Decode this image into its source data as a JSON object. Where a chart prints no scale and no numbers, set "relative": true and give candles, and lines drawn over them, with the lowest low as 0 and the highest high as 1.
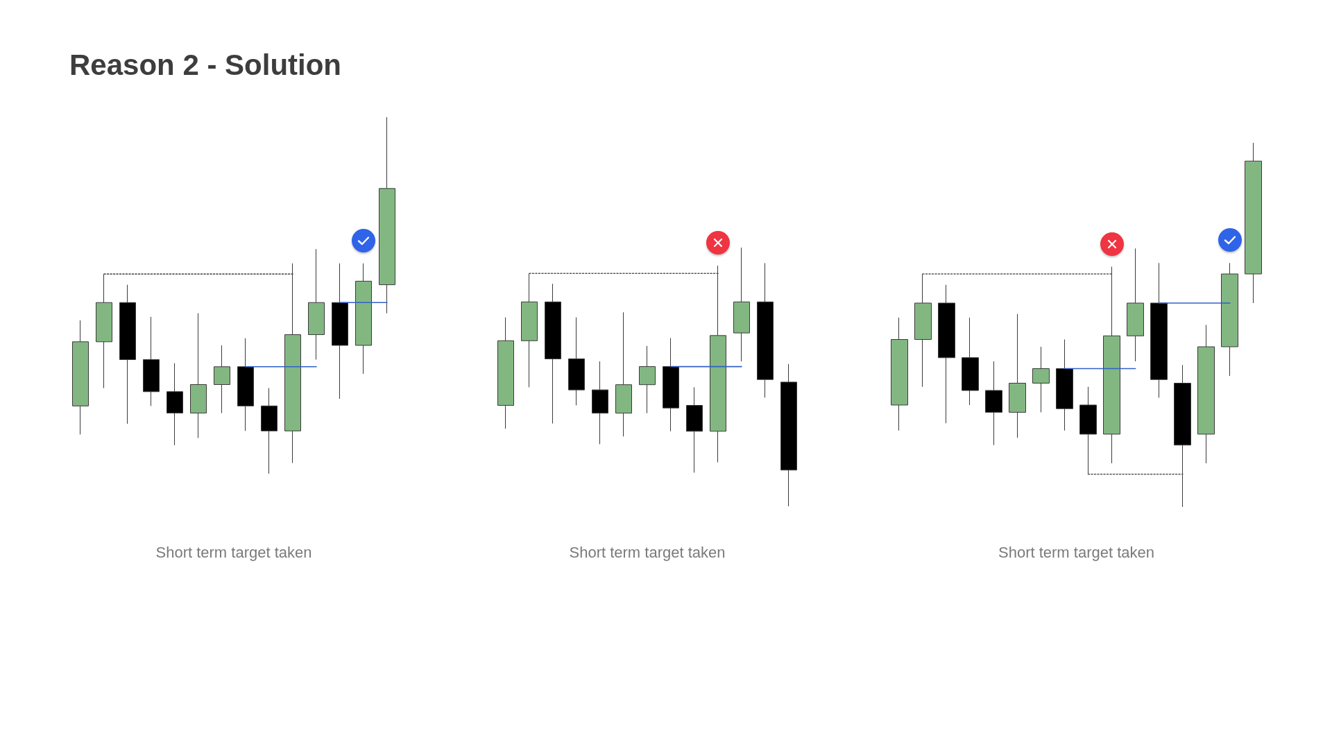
{
  "chart_data": [
    {
      "type": "other",
      "title": "Reason 2 - Solution"
    },
    {
      "type": "candlestick",
      "annotations": [
        "Short term target taken"
      ],
      "relative": true,
      "marker": "none",
      "categories": [
        null,
        null,
        null,
        null,
        null,
        null,
        null,
        null,
        null,
        null,
        null,
        null,
        null,
        null
      ],
      "ohlc": [
        [
          0.19,
          0.43,
          0.11,
          0.37
        ],
        [
          0.37,
          0.56,
          0.24,
          0.48
        ],
        [
          0.48,
          0.53,
          0.14,
          0.32
        ],
        [
          0.32,
          0.44,
          0.19,
          0.23
        ],
        [
          0.23,
          0.31,
          0.08,
          0.17
        ],
        [
          0.17,
          0.45,
          0.1,
          0.25
        ],
        [
          0.25,
          0.36,
          0.17,
          0.3
        ],
        [
          0.3,
          0.38,
          0.12,
          0.19
        ],
        [
          0.19,
          0.24,
          0,
          0.12
        ],
        [
          0.12,
          0.59,
          0.03,
          0.39
        ],
        [
          0.39,
          0.63,
          0.32,
          0.48
        ],
        [
          0.48,
          0.59,
          0.21,
          0.36
        ],
        [
          0.36,
          0.59,
          0.28,
          0.54
        ],
        [
          0.53,
          1,
          0.45,
          0.8
        ]
      ],
      "colors": [
        "#83b782",
        "#83b782",
        "#000000",
        "#000000",
        "#000000",
        "#83b782",
        "#83b782",
        "#000000",
        "#000000",
        "#83b782",
        "#83b782",
        "#000000",
        "#83b782",
        "#83b782"
      ],
      "series": [
        {
          "type": "line",
          "color": "#555555",
          "line_style": "dotted",
          "values": [
            null,
            0.56,
            0.56,
            0.56,
            0.56,
            0.56,
            0.56,
            0.56,
            0.56,
            0.56,
            null,
            null,
            null,
            null
          ]
        },
        {
          "type": "line",
          "color": "#3060c8",
          "line_style": "solid",
          "values": [
            null,
            null,
            null,
            null,
            null,
            null,
            null,
            0.3,
            0.3,
            0.3,
            0.3,
            null,
            null,
            null
          ]
        },
        {
          "type": "line",
          "color": "#3060c8",
          "line_style": "solid",
          "values": [
            null,
            null,
            null,
            null,
            null,
            null,
            null,
            null,
            null,
            null,
            null,
            0.48,
            0.48,
            0.48
          ]
        }
      ]
    },
    {
      "type": "candlestick",
      "annotations": [
        "Short term target taken"
      ],
      "relative": true,
      "marker": "none",
      "categories": [
        null,
        null,
        null,
        null,
        null,
        null,
        null,
        null,
        null,
        null,
        null,
        null,
        null
      ],
      "ohlc": [
        [
          0.39,
          0.73,
          0.3,
          0.64
        ],
        [
          0.64,
          0.9,
          0.46,
          0.79
        ],
        [
          0.79,
          0.86,
          0.32,
          0.57
        ],
        [
          0.57,
          0.73,
          0.39,
          0.45
        ],
        [
          0.45,
          0.56,
          0.24,
          0.36
        ],
        [
          0.36,
          0.75,
          0.27,
          0.47
        ],
        [
          0.47,
          0.62,
          0.36,
          0.54
        ],
        [
          0.54,
          0.65,
          0.29,
          0.38
        ],
        [
          0.39,
          0.46,
          0.13,
          0.29
        ],
        [
          0.29,
          0.93,
          0.17,
          0.66
        ],
        [
          0.67,
          1,
          0.56,
          0.79
        ],
        [
          0.79,
          0.94,
          0.42,
          0.49
        ],
        [
          0.48,
          0.55,
          0,
          0.14
        ]
      ],
      "colors": [
        "#83b782",
        "#83b782",
        "#000000",
        "#000000",
        "#000000",
        "#83b782",
        "#83b782",
        "#000000",
        "#000000",
        "#83b782",
        "#83b782",
        "#000000",
        "#000000"
      ],
      "series": [
        {
          "type": "line",
          "color": "#555555",
          "line_style": "dotted",
          "values": [
            null,
            0.9,
            0.9,
            0.9,
            0.9,
            0.9,
            0.9,
            0.9,
            0.9,
            0.9,
            null,
            null,
            null
          ]
        },
        {
          "type": "line",
          "color": "#3060c8",
          "line_style": "solid",
          "values": [
            null,
            null,
            null,
            null,
            null,
            null,
            null,
            0.54,
            0.54,
            0.54,
            0.54,
            null,
            null
          ]
        }
      ]
    },
    {
      "type": "candlestick",
      "annotations": [
        "Short term target taken"
      ],
      "relative": true,
      "marker": "none",
      "categories": [
        null,
        null,
        null,
        null,
        null,
        null,
        null,
        null,
        null,
        null,
        null,
        null,
        null,
        null,
        null,
        null
      ],
      "ohlc": [
        [
          0.28,
          0.52,
          0.21,
          0.46
        ],
        [
          0.46,
          0.64,
          0.33,
          0.56
        ],
        [
          0.56,
          0.61,
          0.23,
          0.41
        ],
        [
          0.41,
          0.52,
          0.28,
          0.32
        ],
        [
          0.32,
          0.4,
          0.17,
          0.26
        ],
        [
          0.26,
          0.53,
          0.19,
          0.34
        ],
        [
          0.34,
          0.44,
          0.26,
          0.38
        ],
        [
          0.38,
          0.46,
          0.21,
          0.27
        ],
        [
          0.28,
          0.33,
          0.09,
          0.2
        ],
        [
          0.2,
          0.66,
          0.12,
          0.47
        ],
        [
          0.47,
          0.71,
          0.4,
          0.56
        ],
        [
          0.56,
          0.67,
          0.3,
          0.35
        ],
        [
          0.34,
          0.39,
          0,
          0.17
        ],
        [
          0.2,
          0.5,
          0.12,
          0.44
        ],
        [
          0.44,
          0.67,
          0.36,
          0.64
        ],
        [
          0.64,
          1,
          0.56,
          0.95
        ]
      ],
      "colors": [
        "#83b782",
        "#83b782",
        "#000000",
        "#000000",
        "#000000",
        "#83b782",
        "#83b782",
        "#000000",
        "#000000",
        "#83b782",
        "#83b782",
        "#000000",
        "#000000",
        "#83b782",
        "#83b782",
        "#83b782"
      ],
      "series": [
        {
          "type": "line",
          "color": "#555555",
          "line_style": "dotted",
          "values": [
            null,
            0.64,
            0.64,
            0.64,
            0.64,
            0.64,
            0.64,
            0.64,
            0.64,
            0.64,
            null,
            null,
            null,
            null,
            null,
            null
          ]
        },
        {
          "type": "line",
          "color": "#3060c8",
          "line_style": "solid",
          "values": [
            null,
            null,
            null,
            null,
            null,
            null,
            null,
            0.38,
            0.38,
            0.38,
            0.38,
            null,
            null,
            null,
            null,
            null
          ]
        },
        {
          "type": "line",
          "color": "#3060c8",
          "line_style": "solid",
          "values": [
            null,
            null,
            null,
            null,
            null,
            null,
            null,
            null,
            null,
            null,
            null,
            0.56,
            0.56,
            0.56,
            0.56,
            null
          ]
        },
        {
          "type": "line",
          "color": "#555555",
          "line_style": "dotted",
          "values": [
            null,
            null,
            null,
            null,
            null,
            null,
            null,
            null,
            0.09,
            0.09,
            0.09,
            0.09,
            0.09,
            null,
            null,
            null
          ]
        }
      ]
    }
  ]
}
